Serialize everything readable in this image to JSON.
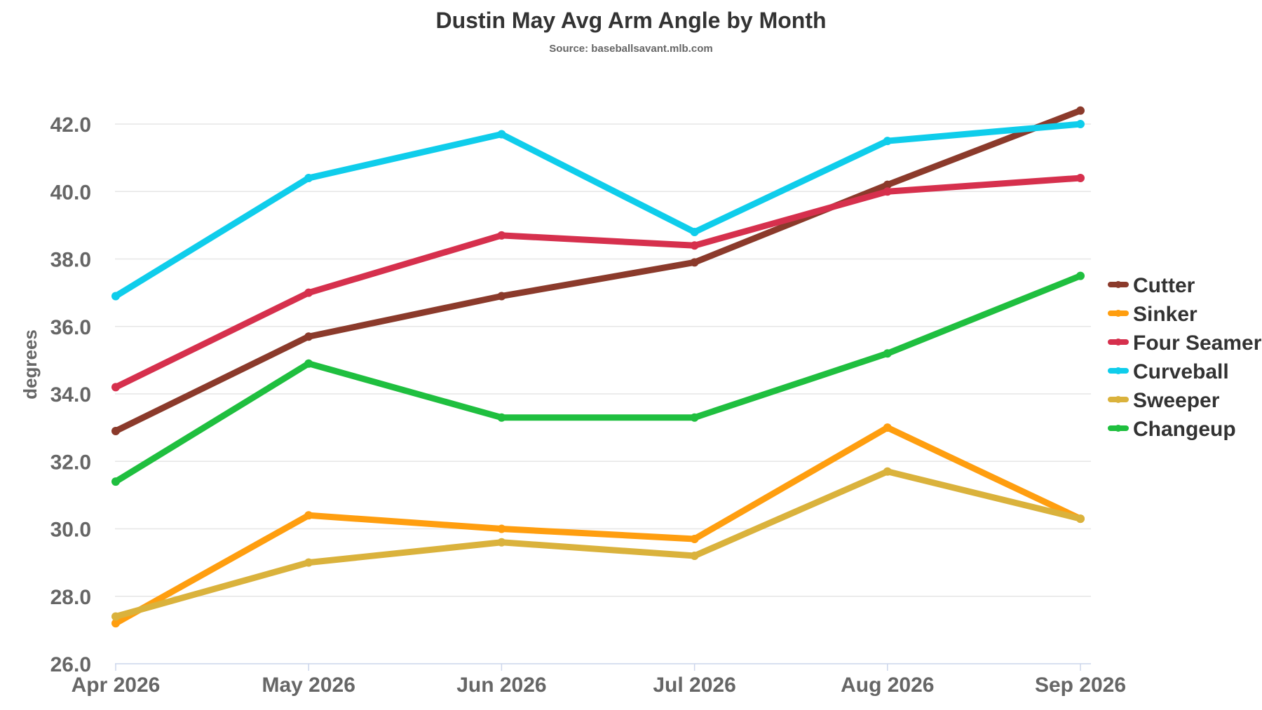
{
  "chart_data": {
    "type": "line",
    "title": "Dustin May Avg Arm Angle by Month",
    "subtitle": "Source: baseballsavant.mlb.com",
    "xlabel": "",
    "ylabel": "degrees",
    "categories": [
      "Apr 2026",
      "May 2026",
      "Jun 2026",
      "Jul 2026",
      "Aug 2026",
      "Sep 2026"
    ],
    "ylim": [
      26.0,
      42.5
    ],
    "yticks": [
      "26.0",
      "28.0",
      "30.0",
      "32.0",
      "34.0",
      "36.0",
      "38.0",
      "40.0",
      "42.0"
    ],
    "grid": true,
    "legend_position": "right",
    "series": [
      {
        "name": "Cutter",
        "color": "#8b3a2b",
        "values": [
          32.9,
          35.7,
          36.9,
          37.9,
          40.2,
          42.4
        ]
      },
      {
        "name": "Sinker",
        "color": "#ff9e0f",
        "values": [
          27.2,
          30.4,
          30.0,
          29.7,
          33.0,
          30.3
        ]
      },
      {
        "name": "Four Seamer",
        "color": "#d6304d",
        "values": [
          34.2,
          37.0,
          38.7,
          38.4,
          40.0,
          40.4
        ]
      },
      {
        "name": "Curveball",
        "color": "#0fcdeb",
        "values": [
          36.9,
          40.4,
          41.7,
          38.8,
          41.5,
          42.0
        ]
      },
      {
        "name": "Sweeper",
        "color": "#dab23c",
        "values": [
          27.4,
          29.0,
          29.6,
          29.2,
          31.7,
          30.3
        ]
      },
      {
        "name": "Changeup",
        "color": "#1fbf3f",
        "values": [
          31.4,
          34.9,
          33.3,
          33.3,
          35.2,
          37.5
        ]
      }
    ]
  }
}
